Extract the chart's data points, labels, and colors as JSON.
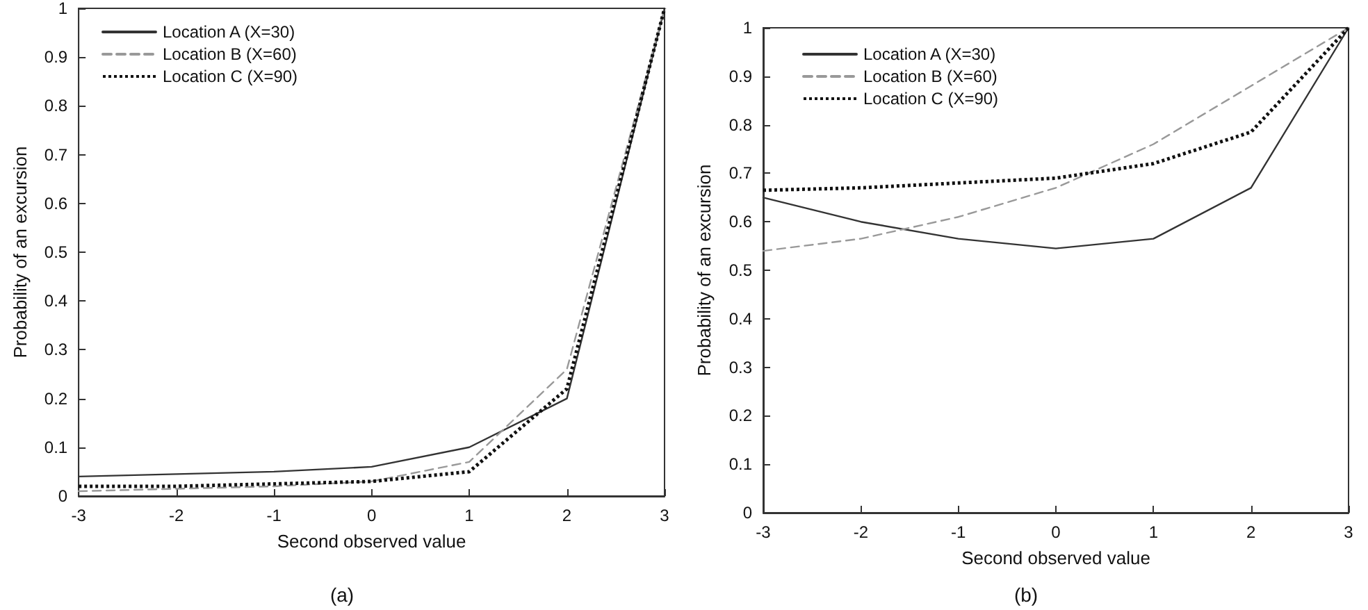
{
  "chart_data": [
    {
      "type": "line",
      "xlabel": "Second observed value",
      "ylabel": "Probability of an excursion",
      "annotations": [
        "(a)"
      ],
      "x": [
        -3,
        -2,
        -1,
        0,
        1,
        2,
        3
      ],
      "series": [
        {
          "name": "Location A (X=30)",
          "color": "#333333",
          "line_style": "solid",
          "values": [
            0.04,
            0.045,
            0.05,
            0.06,
            0.1,
            0.2,
            1
          ]
        },
        {
          "name": "Location B (X=60)",
          "color": "#999999",
          "line_style": "dashed",
          "values": [
            0.01,
            0.015,
            0.02,
            0.03,
            0.07,
            0.26,
            1
          ]
        },
        {
          "name": "Location C (X=90)",
          "color": "#111111",
          "line_style": "dotted",
          "values": [
            0.02,
            0.02,
            0.025,
            0.03,
            0.05,
            0.22,
            1
          ]
        }
      ],
      "xlim": [
        -3,
        3
      ],
      "xticks": [
        -3,
        -2,
        -1,
        0,
        1,
        2,
        3
      ],
      "ylim": [
        0,
        1
      ],
      "yticks": [
        0,
        0.1,
        0.2,
        0.3,
        0.4,
        0.5,
        0.6,
        0.7,
        0.8,
        0.9,
        1
      ],
      "grid": false,
      "legend": "top left",
      "marker": "none"
    },
    {
      "type": "line",
      "xlabel": "Second observed value",
      "ylabel": "Probability of an excursion",
      "annotations": [
        "(b)"
      ],
      "x": [
        -3,
        -2,
        -1,
        0,
        1,
        2,
        3
      ],
      "series": [
        {
          "name": "Location A (X=30)",
          "color": "#333333",
          "line_style": "solid",
          "values": [
            0.65,
            0.6,
            0.565,
            0.545,
            0.565,
            0.67,
            1
          ]
        },
        {
          "name": "Location B (X=60)",
          "color": "#999999",
          "line_style": "dashed",
          "values": [
            0.54,
            0.565,
            0.61,
            0.67,
            0.76,
            0.88,
            1
          ]
        },
        {
          "name": "Location C (X=90)",
          "color": "#111111",
          "line_style": "dotted",
          "values": [
            0.665,
            0.67,
            0.68,
            0.69,
            0.72,
            0.785,
            1
          ]
        }
      ],
      "xlim": [
        -3,
        3
      ],
      "xticks": [
        -3,
        -2,
        -1,
        0,
        1,
        2,
        3
      ],
      "ylim": [
        0,
        1
      ],
      "yticks": [
        0,
        0.1,
        0.2,
        0.3,
        0.4,
        0.5,
        0.6,
        0.7,
        0.8,
        0.9,
        1
      ],
      "grid": false,
      "legend": "top left",
      "marker": "none"
    }
  ]
}
